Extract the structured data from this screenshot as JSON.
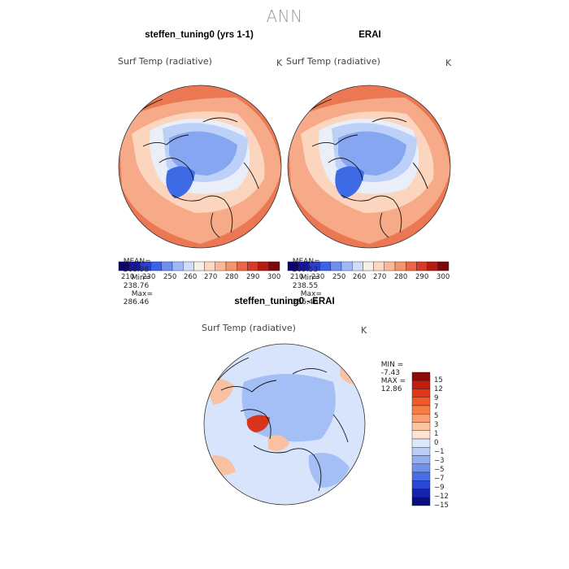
{
  "figure": {
    "title": "ANN"
  },
  "panels": {
    "model": {
      "title": "steffen_tuning0 (yrs 1-1)",
      "variable": "Surf Temp (radiative)",
      "units": "K",
      "stats": {
        "mean_label": "MEAN=",
        "mean": "268.98",
        "min_label": "Min=",
        "min": "238.76",
        "max_label": "Max=",
        "max": "286.46"
      }
    },
    "obs": {
      "title": "ERAI",
      "variable": "Surf Temp (radiative)",
      "units": "K",
      "stats": {
        "mean_label": "MEAN=",
        "mean": "269.53",
        "min_label": "Min=",
        "min": "238.55",
        "max_label": "Max=",
        "max": "286.46"
      }
    },
    "diff": {
      "title": "steffen_tuning0 - ERAI",
      "variable": "Surf Temp (radiative)",
      "units": "K",
      "stats": {
        "min_label": "MIN =",
        "min": "-7.43",
        "max_label": "MAX =",
        "max": "12.86"
      }
    }
  },
  "colorbars": {
    "absolute": {
      "tick_labels": [
        "210",
        "230",
        "250",
        "260",
        "270",
        "280",
        "290",
        "300"
      ],
      "colors": [
        "#08006e",
        "#1414a8",
        "#2a3fd6",
        "#3a64e8",
        "#6c8ff0",
        "#9fb8f6",
        "#cfdcfa",
        "#f8f0e8",
        "#fcd9c0",
        "#f9b898",
        "#f4936e",
        "#e8664a",
        "#d63a28",
        "#b51c14",
        "#7c0a0a"
      ]
    },
    "difference": {
      "tick_labels": [
        "15",
        "12",
        "9",
        "7",
        "5",
        "3",
        "1",
        "0",
        "−1",
        "−3",
        "−5",
        "−7",
        "−9",
        "−12",
        "−15"
      ],
      "colors": [
        "#8c0a0a",
        "#c41d10",
        "#e0361a",
        "#f05a24",
        "#f57c46",
        "#f8a074",
        "#fbc4a3",
        "#fde3d0",
        "#dde8fb",
        "#b8cdf8",
        "#93b0f3",
        "#6e92ee",
        "#4a6ee6",
        "#2b47d6",
        "#1623b0",
        "#080f80"
      ]
    }
  },
  "map_colors": {
    "cold": "#3d6be6",
    "cool": "#87a6f2",
    "chill": "#bcd0f8",
    "neutral": "#e9eef9",
    "mild": "#fbd5bd",
    "warm": "#f6aa87",
    "hot": "#ec7753",
    "diff_base": "#d7e4fb",
    "diff_neg": "#a3bff5",
    "diff_pos": "#f7c1a2",
    "diff_hot": "#d8331c"
  }
}
